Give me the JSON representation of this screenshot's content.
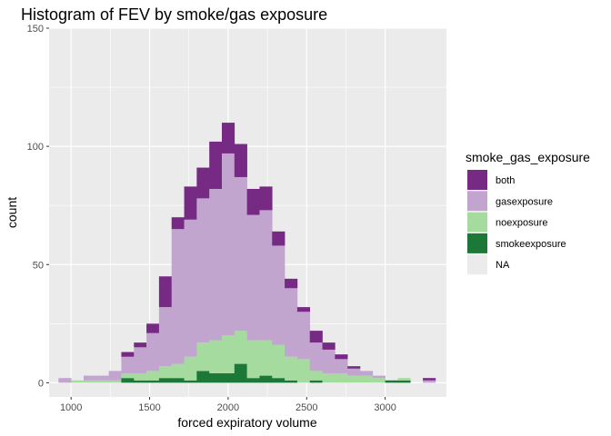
{
  "chart_data": {
    "type": "bar",
    "subtype": "stacked-histogram",
    "title": "Histogram of FEV by smoke/gas exposure",
    "xlabel": "forced expiratory volume",
    "ylabel": "count",
    "xlim": [
      860,
      3390
    ],
    "ylim": [
      -6,
      150
    ],
    "x_ticks": [
      1000,
      1500,
      2000,
      2500,
      3000
    ],
    "y_ticks": [
      0,
      50,
      100,
      150
    ],
    "bin_width": 80,
    "grid": true,
    "legend_position": "right",
    "legend_title": "smoke_gas_exposure",
    "bins": [
      960,
      1040,
      1120,
      1200,
      1280,
      1360,
      1440,
      1520,
      1600,
      1680,
      1760,
      1840,
      1920,
      2000,
      2080,
      2160,
      2240,
      2320,
      2400,
      2480,
      2560,
      2640,
      2720,
      2800,
      2880,
      2960,
      3040,
      3120,
      3200,
      3280
    ],
    "series": [
      {
        "name": "smokeexposure",
        "color": "#1b7837",
        "values": [
          0,
          0,
          0,
          0,
          0,
          2,
          1,
          1,
          2,
          2,
          1,
          5,
          4,
          4,
          8,
          2,
          3,
          2,
          1,
          0,
          1,
          0,
          0,
          0,
          0,
          0,
          1,
          1,
          0,
          0
        ]
      },
      {
        "name": "noexposure",
        "color": "#a6dba0",
        "values": [
          0,
          1,
          1,
          1,
          1,
          2,
          3,
          4,
          5,
          6,
          10,
          12,
          14,
          16,
          14,
          16,
          15,
          14,
          10,
          10,
          4,
          4,
          4,
          3,
          3,
          2,
          0,
          1,
          0,
          0
        ]
      },
      {
        "name": "gasexposure",
        "color": "#c2a5cf",
        "values": [
          2,
          0,
          2,
          2,
          4,
          7,
          11,
          16,
          25,
          57,
          58,
          61,
          64,
          77,
          65,
          53,
          55,
          42,
          29,
          20,
          12,
          10,
          6,
          3,
          2,
          1,
          0,
          0,
          0,
          1
        ]
      },
      {
        "name": "both",
        "color": "#762a83",
        "values": [
          0,
          0,
          0,
          0,
          0,
          2,
          2,
          4,
          13,
          5,
          14,
          13,
          20,
          13,
          14,
          11,
          10,
          6,
          4,
          2,
          5,
          3,
          2,
          1,
          0,
          0,
          0,
          0,
          0,
          1
        ]
      },
      {
        "name": "NA",
        "color": "#ebebeb",
        "values": [
          0,
          0,
          0,
          0,
          0,
          0,
          0,
          0,
          0,
          0,
          0,
          0,
          0,
          0,
          0,
          0,
          0,
          0,
          0,
          0,
          0,
          0,
          0,
          0,
          0,
          0,
          0,
          0,
          0,
          0
        ]
      }
    ],
    "legend_order": [
      "both",
      "gasexposure",
      "noexposure",
      "smokeexposure",
      "NA"
    ],
    "panel_background": "#ebebeb",
    "grid_color": "#ffffff"
  }
}
